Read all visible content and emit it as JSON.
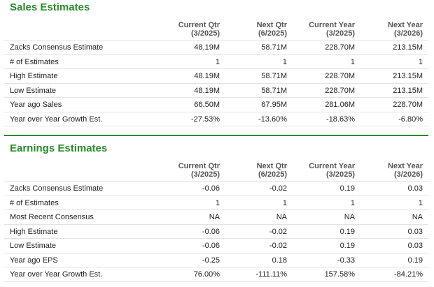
{
  "sections": [
    {
      "title": "Sales Estimates",
      "columns": [
        {
          "name": "Current Qtr",
          "period": "(3/2025)"
        },
        {
          "name": "Next Qtr",
          "period": "(6/2025)"
        },
        {
          "name": "Current Year",
          "period": "(3/2025)"
        },
        {
          "name": "Next Year",
          "period": "(3/2026)"
        }
      ],
      "rows": [
        {
          "label": "Zacks Consensus Estimate",
          "values": [
            "48.19M",
            "58.71M",
            "228.70M",
            "213.15M"
          ]
        },
        {
          "label": "# of Estimates",
          "values": [
            "1",
            "1",
            "1",
            "1"
          ]
        },
        {
          "label": "High Estimate",
          "values": [
            "48.19M",
            "58.71M",
            "228.70M",
            "213.15M"
          ]
        },
        {
          "label": "Low Estimate",
          "values": [
            "48.19M",
            "58.71M",
            "228.70M",
            "213.15M"
          ]
        },
        {
          "label": "Year ago Sales",
          "values": [
            "66.50M",
            "67.95M",
            "281.06M",
            "228.70M"
          ]
        },
        {
          "label": "Year over Year Growth Est.",
          "values": [
            "-27.53%",
            "-13.60%",
            "-18.63%",
            "-6.80%"
          ]
        }
      ]
    },
    {
      "title": "Earnings Estimates",
      "columns": [
        {
          "name": "Current Qtr",
          "period": "(3/2025)"
        },
        {
          "name": "Next Qtr",
          "period": "(6/2025)"
        },
        {
          "name": "Current Year",
          "period": "(3/2025)"
        },
        {
          "name": "Next Year",
          "period": "(3/2026)"
        }
      ],
      "rows": [
        {
          "label": "Zacks Consensus Estimate",
          "values": [
            "-0.06",
            "-0.02",
            "0.19",
            "0.03"
          ]
        },
        {
          "label": "# of Estimates",
          "values": [
            "1",
            "1",
            "1",
            "1"
          ]
        },
        {
          "label": "Most Recent Consensus",
          "values": [
            "NA",
            "NA",
            "NA",
            "NA"
          ]
        },
        {
          "label": "High Estimate",
          "values": [
            "-0.06",
            "-0.02",
            "0.19",
            "0.03"
          ]
        },
        {
          "label": "Low Estimate",
          "values": [
            "-0.06",
            "-0.02",
            "0.19",
            "0.03"
          ]
        },
        {
          "label": "Year ago EPS",
          "values": [
            "-0.25",
            "0.18",
            "-0.33",
            "0.19"
          ]
        },
        {
          "label": "Year over Year Growth Est.",
          "values": [
            "76.00%",
            "-111.11%",
            "157.58%",
            "-84.21%"
          ]
        }
      ]
    }
  ]
}
